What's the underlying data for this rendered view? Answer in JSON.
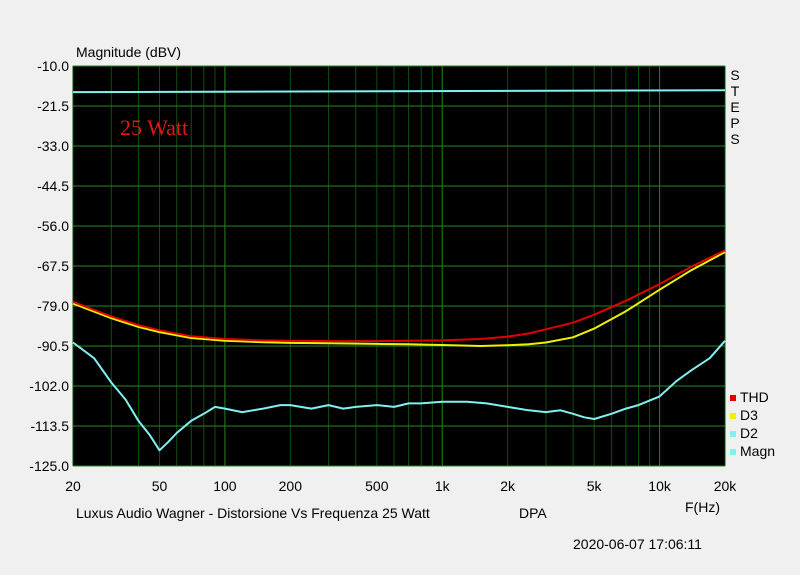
{
  "chart_data": {
    "type": "line",
    "ylabel": "Magnitude (dBV)",
    "xlabel": "F(Hz)",
    "x_scale": "log",
    "xlim": [
      20,
      20000
    ],
    "ylim": [
      -125.0,
      -10.0
    ],
    "yticks": [
      "-10.0",
      "-21.5",
      "-33.0",
      "-44.5",
      "-56.0",
      "-67.5",
      "-79.0",
      "-90.5",
      "-102.0",
      "-113.5",
      "-125.0"
    ],
    "xticks": [
      {
        "v": 20,
        "t": "20"
      },
      {
        "v": 50,
        "t": "50"
      },
      {
        "v": 100,
        "t": "100"
      },
      {
        "v": 200,
        "t": "200"
      },
      {
        "v": 500,
        "t": "500"
      },
      {
        "v": 1000,
        "t": "1k"
      },
      {
        "v": 2000,
        "t": "2k"
      },
      {
        "v": 5000,
        "t": "5k"
      },
      {
        "v": 10000,
        "t": "10k"
      },
      {
        "v": 20000,
        "t": "20k"
      }
    ],
    "grid": true,
    "annotation": "25 Watt",
    "side_text": [
      "S",
      "T",
      "E",
      "P",
      "S"
    ],
    "legend_position": "right",
    "series": [
      {
        "name": "THD",
        "color": "#e00000",
        "x": [
          20,
          30,
          40,
          50,
          70,
          100,
          150,
          200,
          300,
          500,
          700,
          1000,
          1500,
          2000,
          2500,
          3000,
          4000,
          5000,
          7000,
          10000,
          14000,
          20000
        ],
        "y": [
          -77.8,
          -82.0,
          -84.5,
          -86.0,
          -87.7,
          -88.5,
          -88.9,
          -89.0,
          -89.1,
          -89.1,
          -89.0,
          -88.9,
          -88.5,
          -87.8,
          -86.9,
          -85.7,
          -83.8,
          -81.5,
          -77.5,
          -72.7,
          -67.7,
          -63.0
        ]
      },
      {
        "name": "D3",
        "color": "#f0f000",
        "x": [
          20,
          30,
          40,
          50,
          70,
          100,
          150,
          200,
          300,
          500,
          700,
          1000,
          1500,
          2000,
          2500,
          3000,
          4000,
          5000,
          7000,
          10000,
          14000,
          20000
        ],
        "y": [
          -78.3,
          -82.5,
          -85.0,
          -86.5,
          -88.2,
          -89.0,
          -89.4,
          -89.6,
          -89.7,
          -89.9,
          -90.0,
          -90.2,
          -90.5,
          -90.3,
          -90.0,
          -89.5,
          -88.0,
          -85.5,
          -80.5,
          -74.3,
          -68.7,
          -63.5
        ]
      },
      {
        "name": "D2",
        "color": "#80f0f0",
        "x": [
          20,
          25,
          30,
          35,
          40,
          45,
          50,
          55,
          60,
          70,
          80,
          90,
          100,
          120,
          150,
          180,
          200,
          250,
          300,
          350,
          400,
          500,
          600,
          700,
          800,
          1000,
          1300,
          1600,
          2000,
          2500,
          3000,
          3500,
          4000,
          4500,
          5000,
          6000,
          7000,
          8000,
          10000,
          12000,
          14000,
          17000,
          20000
        ],
        "y": [
          -89.5,
          -94.0,
          -101.0,
          -106.0,
          -112.0,
          -116.0,
          -120.5,
          -118.0,
          -115.5,
          -112.0,
          -110.0,
          -108.0,
          -108.5,
          -109.5,
          -108.5,
          -107.5,
          -107.5,
          -108.5,
          -107.5,
          -108.5,
          -108.0,
          -107.5,
          -108.0,
          -107.0,
          -107.0,
          -106.5,
          -106.5,
          -107.0,
          -108.0,
          -109.0,
          -109.5,
          -109.0,
          -110.0,
          -111.0,
          -111.5,
          -110.0,
          -108.5,
          -107.5,
          -105.0,
          -100.5,
          -97.5,
          -94.0,
          -89.0
        ]
      },
      {
        "name": "Magn",
        "color": "#80f0f0",
        "x": [
          20,
          20000
        ],
        "y": [
          -17.5,
          -17.0
        ]
      }
    ]
  },
  "footer": {
    "title": "Luxus Audio Wagner - Distorsione Vs Frequenza 25 Watt",
    "tag": "DPA",
    "timestamp": "2020-06-07 17:06:11"
  }
}
